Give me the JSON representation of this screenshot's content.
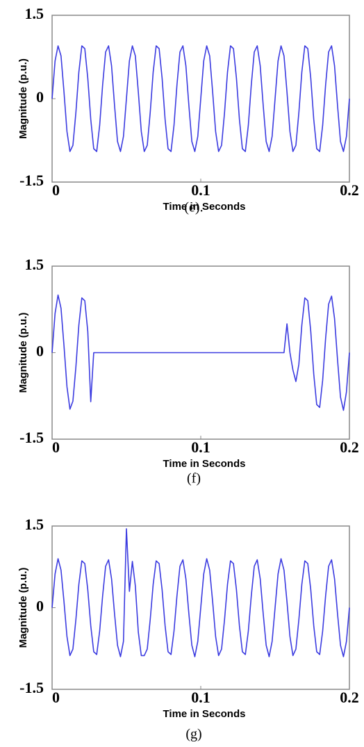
{
  "chart_data": [
    {
      "type": "line",
      "xlabel": "Time in Seconds",
      "ylabel": "Magnitude (p.u.)",
      "caption": "(e).",
      "xlim": [
        0,
        0.2
      ],
      "ylim": [
        -1.5,
        1.5
      ],
      "xticks": [
        0,
        0.1,
        0.2
      ],
      "yticks": [
        -1.5,
        0,
        1.5
      ],
      "x": [
        0,
        0.002,
        0.004,
        0.006,
        0.008,
        0.01,
        0.012,
        0.014,
        0.016,
        0.018,
        0.02,
        0.022,
        0.024,
        0.026,
        0.028,
        0.03,
        0.032,
        0.034,
        0.036,
        0.038,
        0.04,
        0.042,
        0.044,
        0.046,
        0.048,
        0.05,
        0.052,
        0.054,
        0.056,
        0.058,
        0.06,
        0.062,
        0.064,
        0.066,
        0.068,
        0.07,
        0.072,
        0.074,
        0.076,
        0.078,
        0.08,
        0.082,
        0.084,
        0.086,
        0.088,
        0.09,
        0.092,
        0.094,
        0.096,
        0.098,
        0.1,
        0.102,
        0.104,
        0.106,
        0.108,
        0.11,
        0.112,
        0.114,
        0.116,
        0.118,
        0.12,
        0.122,
        0.124,
        0.126,
        0.128,
        0.13,
        0.132,
        0.134,
        0.136,
        0.138,
        0.14,
        0.142,
        0.144,
        0.146,
        0.148,
        0.15,
        0.152,
        0.154,
        0.156,
        0.158,
        0.16,
        0.162,
        0.164,
        0.166,
        0.168,
        0.17,
        0.172,
        0.174,
        0.176,
        0.178,
        0.18,
        0.182,
        0.184,
        0.186,
        0.188,
        0.19,
        0.192,
        0.194,
        0.196,
        0.198,
        0.2
      ],
      "series": [
        {
          "color": "#3b3be0",
          "values": [
            0,
            0.68,
            0.95,
            0.77,
            0.12,
            -0.59,
            -0.95,
            -0.84,
            -0.25,
            0.48,
            0.95,
            0.9,
            0.37,
            -0.37,
            -0.9,
            -0.95,
            -0.48,
            0.25,
            0.84,
            0.95,
            0.59,
            -0.12,
            -0.77,
            -0.95,
            -0.68,
            0,
            0.68,
            0.95,
            0.77,
            0.12,
            -0.59,
            -0.95,
            -0.84,
            -0.25,
            0.48,
            0.95,
            0.9,
            0.37,
            -0.37,
            -0.9,
            -0.95,
            -0.48,
            0.25,
            0.84,
            0.95,
            0.59,
            -0.12,
            -0.77,
            -0.95,
            -0.68,
            0,
            0.68,
            0.95,
            0.77,
            0.12,
            -0.59,
            -0.95,
            -0.84,
            -0.25,
            0.48,
            0.95,
            0.9,
            0.37,
            -0.37,
            -0.9,
            -0.95,
            -0.48,
            0.25,
            0.84,
            0.95,
            0.59,
            -0.12,
            -0.77,
            -0.95,
            -0.68,
            0,
            0.68,
            0.95,
            0.77,
            0.12,
            -0.59,
            -0.95,
            -0.84,
            -0.25,
            0.48,
            0.95,
            0.9,
            0.37,
            -0.37,
            -0.9,
            -0.95,
            -0.48,
            0.25,
            0.84,
            0.95,
            0.59,
            -0.12,
            -0.77,
            -0.95,
            -0.68,
            0
          ]
        }
      ]
    },
    {
      "type": "line",
      "xlabel": "Time in Seconds",
      "ylabel": "Magnitude (p.u.)",
      "caption": "(f)",
      "xlim": [
        0,
        0.2
      ],
      "ylim": [
        -1.5,
        1.5
      ],
      "xticks": [
        0,
        0.1,
        0.2
      ],
      "yticks": [
        -1.5,
        0,
        1.5
      ],
      "x": [
        0,
        0.002,
        0.004,
        0.006,
        0.008,
        0.01,
        0.012,
        0.014,
        0.016,
        0.018,
        0.02,
        0.022,
        0.024,
        0.026,
        0.028,
        0.03,
        0.032,
        0.034,
        0.036,
        0.038,
        0.04,
        0.042,
        0.044,
        0.046,
        0.048,
        0.05,
        0.052,
        0.054,
        0.056,
        0.058,
        0.06,
        0.062,
        0.064,
        0.066,
        0.068,
        0.07,
        0.072,
        0.074,
        0.076,
        0.078,
        0.08,
        0.082,
        0.084,
        0.086,
        0.088,
        0.09,
        0.092,
        0.094,
        0.096,
        0.098,
        0.1,
        0.102,
        0.104,
        0.106,
        0.108,
        0.11,
        0.112,
        0.114,
        0.116,
        0.118,
        0.12,
        0.122,
        0.124,
        0.126,
        0.128,
        0.13,
        0.132,
        0.134,
        0.136,
        0.138,
        0.14,
        0.142,
        0.144,
        0.146,
        0.148,
        0.15,
        0.152,
        0.154,
        0.156,
        0.158,
        0.16,
        0.162,
        0.164,
        0.166,
        0.168,
        0.17,
        0.172,
        0.174,
        0.176,
        0.178,
        0.18,
        0.182,
        0.184,
        0.186,
        0.188,
        0.19,
        0.192,
        0.194,
        0.196,
        0.198,
        0.2
      ],
      "series": [
        {
          "color": "#3b3be0",
          "values": [
            0,
            0.68,
            1.0,
            0.77,
            0.12,
            -0.59,
            -0.98,
            -0.84,
            -0.25,
            0.48,
            0.95,
            0.9,
            0.37,
            -0.85,
            0,
            0,
            0,
            0,
            0,
            0,
            0,
            0,
            0,
            0,
            0,
            0,
            0,
            0,
            0,
            0,
            0,
            0,
            0,
            0,
            0,
            0,
            0,
            0,
            0,
            0,
            0,
            0,
            0,
            0,
            0,
            0,
            0,
            0,
            0,
            0,
            0,
            0,
            0,
            0,
            0,
            0,
            0,
            0,
            0,
            0,
            0,
            0,
            0,
            0,
            0,
            0,
            0,
            0,
            0,
            0,
            0,
            0,
            0,
            0,
            0,
            0,
            0,
            0,
            0,
            0.5,
            0,
            -0.3,
            -0.5,
            -0.2,
            0.48,
            0.95,
            0.9,
            0.37,
            -0.37,
            -0.9,
            -0.95,
            -0.48,
            0.25,
            0.84,
            0.98,
            0.59,
            -0.12,
            -0.77,
            -1.0,
            -0.68,
            0
          ]
        }
      ]
    },
    {
      "type": "line",
      "xlabel": "Time in Seconds",
      "ylabel": "Magnitude (p.u.)",
      "caption": "(g)",
      "xlim": [
        0,
        0.2
      ],
      "ylim": [
        -1.5,
        1.5
      ],
      "xticks": [
        0,
        0.1,
        0.2
      ],
      "yticks": [
        -1.5,
        0,
        1.5
      ],
      "x": [
        0,
        0.002,
        0.004,
        0.006,
        0.008,
        0.01,
        0.012,
        0.014,
        0.016,
        0.018,
        0.02,
        0.022,
        0.024,
        0.026,
        0.028,
        0.03,
        0.032,
        0.034,
        0.036,
        0.038,
        0.04,
        0.042,
        0.044,
        0.046,
        0.048,
        0.05,
        0.052,
        0.054,
        0.056,
        0.058,
        0.06,
        0.062,
        0.064,
        0.066,
        0.068,
        0.07,
        0.072,
        0.074,
        0.076,
        0.078,
        0.08,
        0.082,
        0.084,
        0.086,
        0.088,
        0.09,
        0.092,
        0.094,
        0.096,
        0.098,
        0.1,
        0.102,
        0.104,
        0.106,
        0.108,
        0.11,
        0.112,
        0.114,
        0.116,
        0.118,
        0.12,
        0.122,
        0.124,
        0.126,
        0.128,
        0.13,
        0.132,
        0.134,
        0.136,
        0.138,
        0.14,
        0.142,
        0.144,
        0.146,
        0.148,
        0.15,
        0.152,
        0.154,
        0.156,
        0.158,
        0.16,
        0.162,
        0.164,
        0.166,
        0.168,
        0.17,
        0.172,
        0.174,
        0.176,
        0.178,
        0.18,
        0.182,
        0.184,
        0.186,
        0.188,
        0.19,
        0.192,
        0.194,
        0.196,
        0.198,
        0.2
      ],
      "series": [
        {
          "color": "#3b3be0",
          "values": [
            0,
            0.62,
            0.9,
            0.69,
            0.11,
            -0.53,
            -0.88,
            -0.76,
            -0.22,
            0.43,
            0.86,
            0.81,
            0.33,
            -0.33,
            -0.81,
            -0.86,
            -0.43,
            0.22,
            0.76,
            0.88,
            0.53,
            -0.11,
            -0.69,
            -0.9,
            -0.62,
            1.45,
            0.3,
            0.85,
            0.4,
            -0.45,
            -0.88,
            -0.88,
            -0.76,
            -0.22,
            0.43,
            0.86,
            0.81,
            0.33,
            -0.33,
            -0.81,
            -0.86,
            -0.43,
            0.22,
            0.76,
            0.88,
            0.53,
            -0.11,
            -0.69,
            -0.9,
            -0.62,
            0,
            0.62,
            0.9,
            0.69,
            0.11,
            -0.53,
            -0.88,
            -0.76,
            -0.22,
            0.43,
            0.86,
            0.81,
            0.33,
            -0.33,
            -0.81,
            -0.86,
            -0.43,
            0.22,
            0.76,
            0.88,
            0.53,
            -0.11,
            -0.69,
            -0.9,
            -0.62,
            0,
            0.62,
            0.9,
            0.69,
            0.11,
            -0.53,
            -0.88,
            -0.76,
            -0.22,
            0.43,
            0.86,
            0.81,
            0.33,
            -0.33,
            -0.81,
            -0.86,
            -0.43,
            0.22,
            0.76,
            0.88,
            0.53,
            -0.11,
            -0.69,
            -0.9,
            -0.62,
            0
          ]
        }
      ]
    }
  ]
}
